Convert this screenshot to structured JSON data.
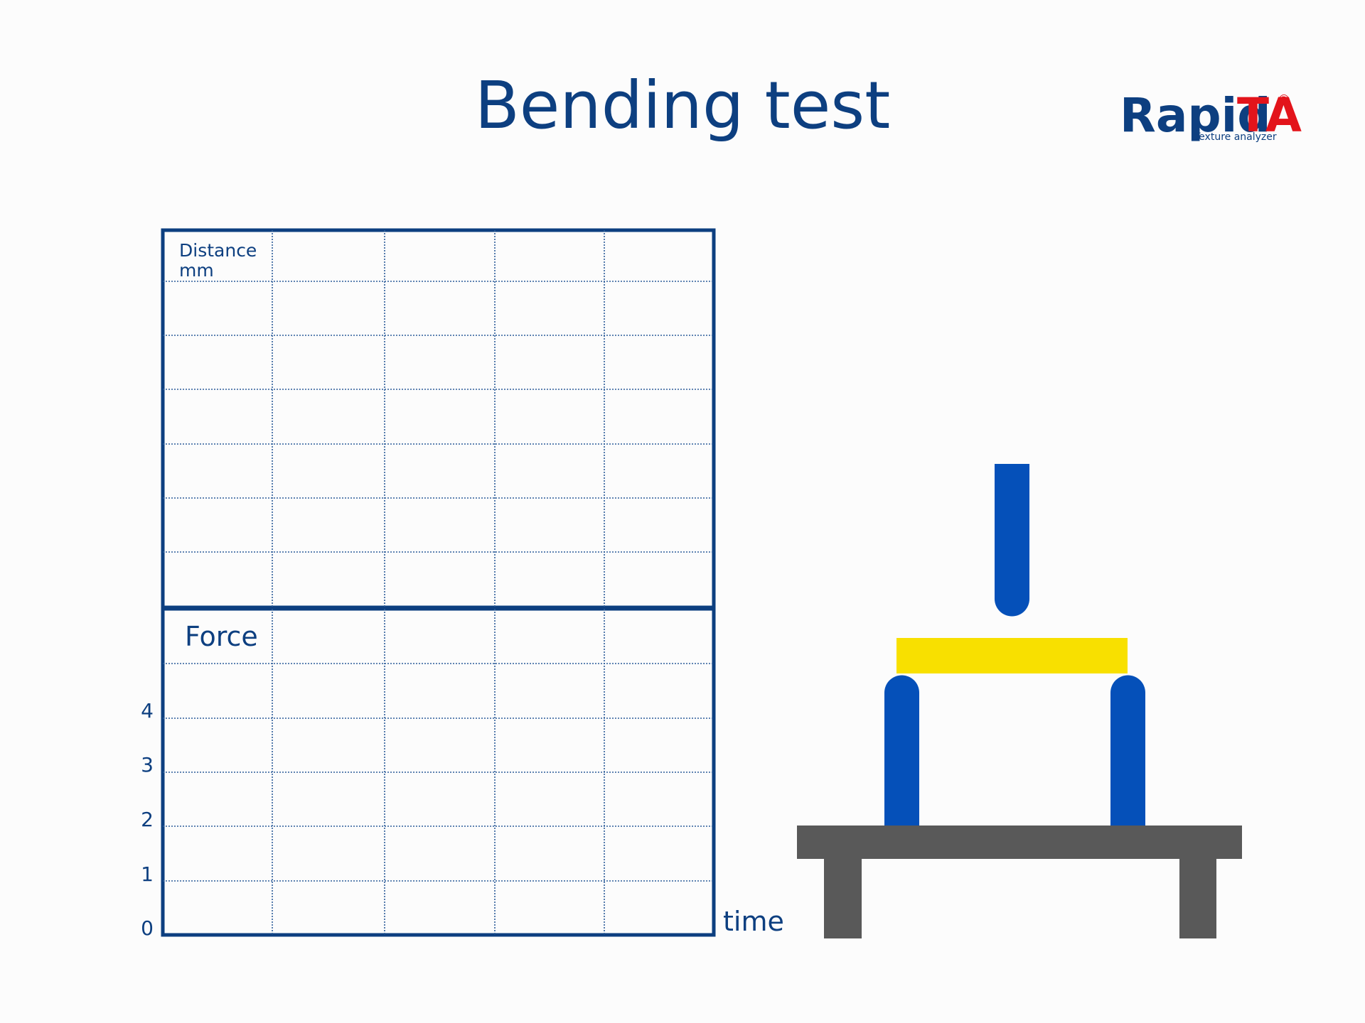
{
  "title": "Bending test",
  "logo": {
    "brand_main": "Rapid",
    "brand_accent": "TA",
    "registered_mark": "®",
    "subtitle": "Texture analyzer",
    "colors": {
      "main": "#0d3f80",
      "accent": "#e3141b"
    }
  },
  "chart": {
    "distance_label_line1": "Distance",
    "distance_label_line2": "mm",
    "force_label": "Force",
    "time_label": "time",
    "force_ticks": [
      "4",
      "3",
      "2",
      "1",
      "0"
    ]
  },
  "apparatus": {
    "probe_color": "#0550b9",
    "sample_color": "#f8e000",
    "bench_color": "#595959"
  }
}
